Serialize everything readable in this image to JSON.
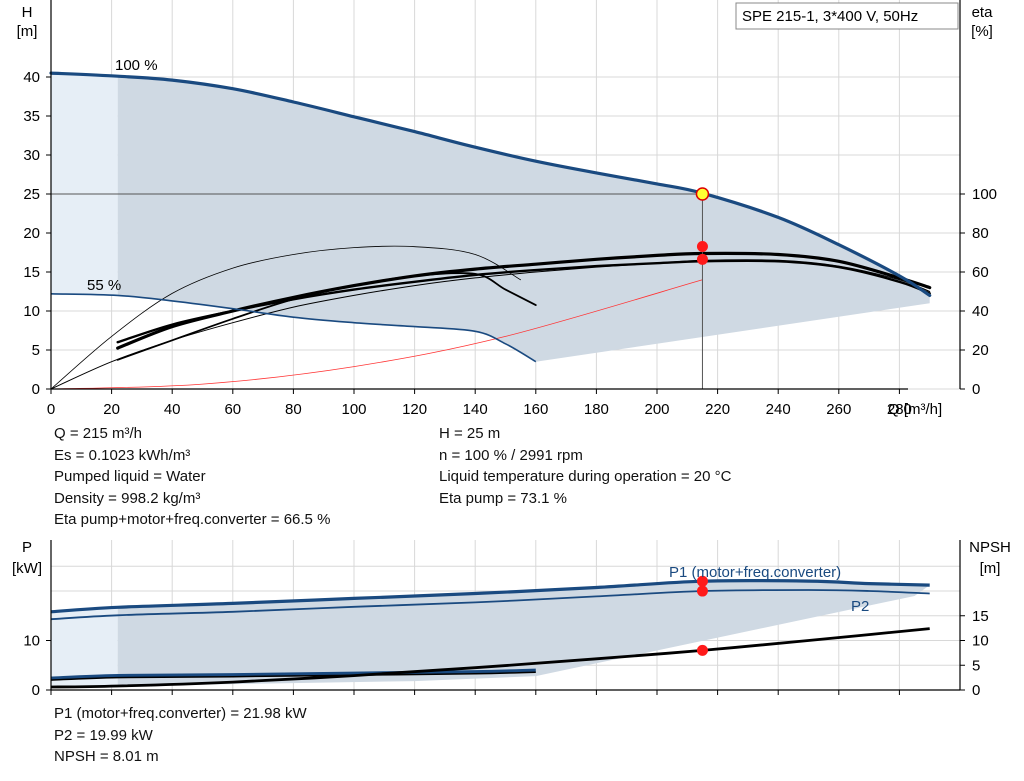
{
  "chart_data": [
    {
      "type": "line",
      "name": "qh",
      "title_box": "SPE 215-1, 3*400 V, 50Hz",
      "y_label": [
        "H",
        "[m]"
      ],
      "y2_label": [
        "eta",
        "[%]"
      ],
      "x_label": "Q [m³/h]",
      "xlim": [
        0,
        300
      ],
      "ylim": [
        0,
        45
      ],
      "y2lim": [
        0,
        100
      ],
      "x_ticks": [
        0,
        20,
        40,
        60,
        80,
        100,
        120,
        140,
        160,
        180,
        200,
        220,
        240,
        260,
        280
      ],
      "y_ticks": [
        0,
        5,
        10,
        15,
        20,
        25,
        30,
        35,
        40
      ],
      "y2_ticks": [
        0,
        20,
        40,
        60,
        80,
        100
      ],
      "curve_labels": [
        "100 %",
        "55 %"
      ],
      "series": [
        {
          "name": "100 %",
          "x": [
            0,
            22,
            40,
            60,
            80,
            100,
            120,
            140,
            160,
            180,
            200,
            215,
            240,
            260,
            280,
            290
          ],
          "y": [
            40.5,
            40.1,
            39.6,
            38.5,
            36.8,
            34.9,
            33.0,
            31.0,
            29.2,
            27.7,
            26.3,
            25.1,
            22.0,
            18.5,
            14.5,
            12.0
          ]
        },
        {
          "name": "55 %",
          "x": [
            0,
            22,
            40,
            60,
            80,
            100,
            120,
            140,
            150,
            160
          ],
          "y": [
            12.2,
            12.0,
            11.3,
            10.3,
            9.2,
            8.5,
            8.0,
            7.4,
            5.8,
            3.5
          ]
        },
        {
          "name": "eta",
          "x": [
            0,
            20,
            40,
            60,
            80,
            100,
            120,
            140,
            160,
            180,
            200,
            215,
            240,
            260,
            280,
            290
          ],
          "y": [
            0,
            14,
            25,
            34,
            42,
            48,
            53,
            57,
            60,
            62.5,
            64.5,
            66,
            66,
            63,
            56,
            50
          ]
        },
        {
          "name": "eta",
          "x": [
            22,
            40,
            60,
            80,
            100,
            120,
            140,
            160,
            180,
            200,
            215,
            240,
            260,
            280,
            290
          ],
          "y": [
            24,
            33,
            40,
            46,
            51,
            55,
            58.5,
            61,
            63,
            64.5,
            65.5,
            65.5,
            62.5,
            55,
            49
          ]
        },
        {
          "name": "eta",
          "x": [
            22,
            40,
            60,
            80,
            100,
            120,
            140,
            160,
            180,
            200,
            215,
            240,
            260,
            280,
            290
          ],
          "y": [
            21,
            32,
            40,
            47,
            53,
            58,
            61.5,
            64,
            66.5,
            68.5,
            69.5,
            69,
            65.5,
            57,
            52
          ]
        },
        {
          "name": "eta",
          "x": [
            22,
            40,
            60,
            80,
            100,
            120,
            140,
            150,
            160
          ],
          "y": [
            15,
            25,
            36,
            46,
            53,
            58,
            59,
            51,
            43
          ]
        },
        {
          "name": "eta",
          "x": [
            0,
            20,
            40,
            60,
            80,
            100,
            120,
            140,
            155
          ],
          "y": [
            0,
            27,
            49,
            62,
            69,
            72.5,
            73,
            69,
            56
          ]
        },
        {
          "name": "eta",
          "x": [
            0,
            50,
            100,
            150,
            215
          ],
          "y": [
            0,
            2.5,
            11.5,
            27,
            56
          ]
        }
      ],
      "operating_point": {
        "Q": 215,
        "H": 25
      },
      "eta_points": [
        73.1,
        66.5
      ]
    },
    {
      "type": "line",
      "name": "power",
      "y_label": [
        "P",
        "[kW]"
      ],
      "y2_label": [
        "NPSH",
        "[m]"
      ],
      "xlim": [
        0,
        300
      ],
      "ylim": [
        0,
        25
      ],
      "y2lim": [
        0,
        25
      ],
      "y_ticks": [
        0,
        10
      ],
      "y2_ticks": [
        0,
        5,
        10,
        15
      ],
      "legend": [
        "P1 (motor+freq.converter)",
        "P2"
      ],
      "series": [
        {
          "name": "P1 (motor+freq.converter)",
          "x": [
            0,
            22,
            60,
            100,
            140,
            180,
            215,
            250,
            270,
            290
          ],
          "y": [
            15.8,
            16.7,
            17.5,
            18.5,
            19.5,
            20.7,
            21.98,
            22.0,
            21.5,
            21.2
          ]
        },
        {
          "name": "P2",
          "x": [
            0,
            22,
            60,
            100,
            140,
            180,
            215,
            250,
            270,
            290
          ],
          "y": [
            14.3,
            15.1,
            15.8,
            16.8,
            17.7,
            18.9,
            19.99,
            20.2,
            20.0,
            19.5
          ]
        },
        {
          "name": "P1 (motor+freq.converter)",
          "x": [
            0,
            22,
            60,
            100,
            140,
            160
          ],
          "y": [
            2.4,
            2.9,
            3.1,
            3.4,
            3.7,
            4.0
          ]
        },
        {
          "name": "NPSH",
          "x": [
            0,
            22,
            60,
            100,
            140,
            180,
            215,
            250,
            290
          ],
          "y": [
            0.6,
            0.8,
            1.6,
            2.9,
            4.5,
            6.3,
            8.01,
            10,
            12.4
          ]
        }
      ],
      "operating_point": {
        "Q": 215,
        "P1": 21.98,
        "P2": 19.99,
        "NPSH": 8.01
      }
    }
  ],
  "info_left": [
    "Q = 215 m³/h",
    "Es = 0.1023 kWh/m³",
    "Pumped liquid = Water",
    "Density = 998.2 kg/m³",
    "Eta pump+motor+freq.converter = 66.5 %"
  ],
  "info_right": [
    "H = 25 m",
    "n = 100 % / 2991 rpm",
    "Liquid temperature during operation = 20 °C",
    "Eta pump = 73.1 %"
  ],
  "info_bottom": [
    "P1 (motor+freq.converter) = 21.98 kW",
    "P2 = 19.99 kW",
    "NPSH = 8.01 m"
  ],
  "colors": {
    "curve_blue": "#1a4a80",
    "area_fill": "#cfd9e3",
    "area_light": "#e6eef6",
    "grid": "#d8d8d8",
    "point_red": "#ff1a1a",
    "point_yellow": "#ffff33",
    "frame": "#000000"
  }
}
